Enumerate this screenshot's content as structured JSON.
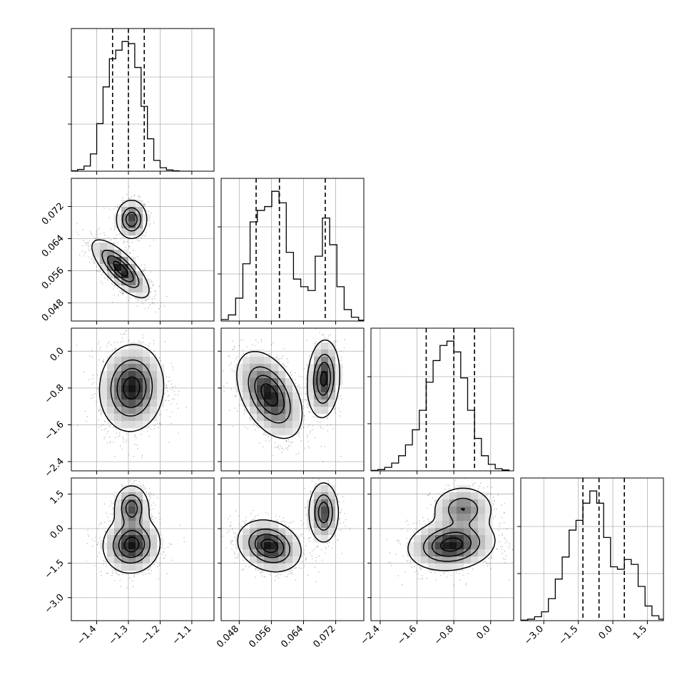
{
  "chart_data": {
    "type": "corner",
    "grid": true,
    "title": "",
    "variables": [
      {
        "range": [
          -1.48,
          -1.03
        ],
        "ticks": [
          -1.4,
          -1.3,
          -1.2,
          -1.1
        ],
        "tick_labels": [
          "−1.4",
          "−1.3",
          "−1.2",
          "−1.1"
        ],
        "quantiles": [
          -1.35,
          -1.3,
          -1.25
        ],
        "hist": {
          "edges": [
            -1.48,
            -1.46,
            -1.44,
            -1.42,
            -1.4,
            -1.38,
            -1.36,
            -1.34,
            -1.32,
            -1.3,
            -1.28,
            -1.26,
            -1.24,
            -1.22,
            -1.2,
            -1.18,
            -1.16,
            -1.14,
            -1.12,
            -1.1
          ],
          "counts": [
            1,
            4,
            12,
            40,
            110,
            195,
            260,
            280,
            300,
            295,
            240,
            150,
            75,
            25,
            8,
            3,
            1,
            0,
            0
          ]
        }
      },
      {
        "range": [
          0.0435,
          0.079
        ],
        "ticks": [
          0.048,
          0.056,
          0.064,
          0.072
        ],
        "tick_labels": [
          "0.048",
          "0.056",
          "0.064",
          "0.072"
        ],
        "quantiles": [
          0.0522,
          0.058,
          0.0694
        ],
        "hist": {
          "edges": [
            0.0435,
            0.0453,
            0.0471,
            0.0489,
            0.0507,
            0.0525,
            0.0543,
            0.0561,
            0.0579,
            0.0597,
            0.0615,
            0.0633,
            0.0651,
            0.0669,
            0.0687,
            0.0705,
            0.0723,
            0.0741,
            0.0759,
            0.0777,
            0.079
          ],
          "counts": [
            2,
            8,
            30,
            75,
            130,
            145,
            150,
            170,
            155,
            90,
            55,
            45,
            40,
            85,
            135,
            100,
            45,
            15,
            5,
            1
          ]
        }
      },
      {
        "range": [
          -2.6,
          0.5
        ],
        "ticks": [
          -2.4,
          -1.6,
          -0.8,
          0.0
        ],
        "tick_labels": [
          "−2.4",
          "−1.6",
          "−0.8",
          "0.0"
        ],
        "quantiles": [
          -1.4,
          -0.8,
          -0.35
        ],
        "hist": {
          "edges": [
            -2.6,
            -2.45,
            -2.3,
            -2.15,
            -2.0,
            -1.85,
            -1.7,
            -1.55,
            -1.4,
            -1.25,
            -1.1,
            -0.95,
            -0.8,
            -0.65,
            -0.5,
            -0.35,
            -0.2,
            -0.05,
            0.1,
            0.25,
            0.4
          ],
          "counts": [
            1,
            3,
            8,
            18,
            35,
            60,
            95,
            140,
            205,
            255,
            290,
            300,
            275,
            215,
            140,
            75,
            35,
            15,
            5,
            2
          ]
        }
      },
      {
        "range": [
          -4.0,
          2.2
        ],
        "ticks": [
          -3.0,
          -1.5,
          0.0,
          1.5
        ],
        "tick_labels": [
          "−3.0",
          "−1.5",
          "0.0",
          "1.5"
        ],
        "quantiles": [
          -1.3,
          -0.6,
          0.5
        ],
        "hist": {
          "edges": [
            -4.0,
            -3.7,
            -3.4,
            -3.1,
            -2.8,
            -2.5,
            -2.2,
            -1.9,
            -1.6,
            -1.3,
            -1.0,
            -0.7,
            -0.4,
            -0.1,
            0.2,
            0.5,
            0.8,
            1.1,
            1.4,
            1.7,
            2.0,
            2.2
          ],
          "counts": [
            1,
            3,
            8,
            18,
            45,
            85,
            130,
            185,
            205,
            240,
            265,
            240,
            170,
            110,
            105,
            125,
            115,
            70,
            30,
            10,
            3
          ]
        }
      }
    ],
    "pairs": [
      {
        "row": 1,
        "col": 0,
        "modes": [
          {
            "mx": -1.29,
            "my": 0.0688,
            "sx": 0.022,
            "sy": 0.0022,
            "rho": 0.0,
            "w": 0.32
          },
          {
            "mx": -1.325,
            "my": 0.0565,
            "sx": 0.04,
            "sy": 0.0032,
            "rho": -0.75,
            "w": 0.68
          }
        ]
      },
      {
        "row": 2,
        "col": 0,
        "modes": [
          {
            "mx": -1.29,
            "my": -0.8,
            "sx": 0.045,
            "sy": 0.42,
            "rho": 0.05,
            "w": 1.0
          }
        ]
      },
      {
        "row": 2,
        "col": 1,
        "modes": [
          {
            "mx": 0.0555,
            "my": -0.95,
            "sx": 0.0036,
            "sy": 0.42,
            "rho": -0.45,
            "w": 0.68
          },
          {
            "mx": 0.069,
            "my": -0.6,
            "sx": 0.0018,
            "sy": 0.38,
            "rho": 0.1,
            "w": 0.32
          }
        ]
      },
      {
        "row": 3,
        "col": 0,
        "modes": [
          {
            "mx": -1.29,
            "my": -0.7,
            "sx": 0.04,
            "sy": 0.55,
            "rho": 0.05,
            "w": 0.72
          },
          {
            "mx": -1.29,
            "my": 0.9,
            "sx": 0.025,
            "sy": 0.45,
            "rho": 0.0,
            "w": 0.28
          }
        ]
      },
      {
        "row": 3,
        "col": 1,
        "modes": [
          {
            "mx": 0.0555,
            "my": -0.75,
            "sx": 0.0035,
            "sy": 0.5,
            "rho": -0.2,
            "w": 0.68
          },
          {
            "mx": 0.069,
            "my": 0.7,
            "sx": 0.0017,
            "sy": 0.6,
            "rho": 0.0,
            "w": 0.32
          }
        ]
      },
      {
        "row": 3,
        "col": 2,
        "modes": [
          {
            "mx": -0.85,
            "my": -0.7,
            "sx": 0.42,
            "sy": 0.5,
            "rho": 0.15,
            "w": 0.72
          },
          {
            "mx": -0.6,
            "my": 0.85,
            "sx": 0.3,
            "sy": 0.45,
            "rho": 0.0,
            "w": 0.28
          }
        ]
      }
    ]
  }
}
